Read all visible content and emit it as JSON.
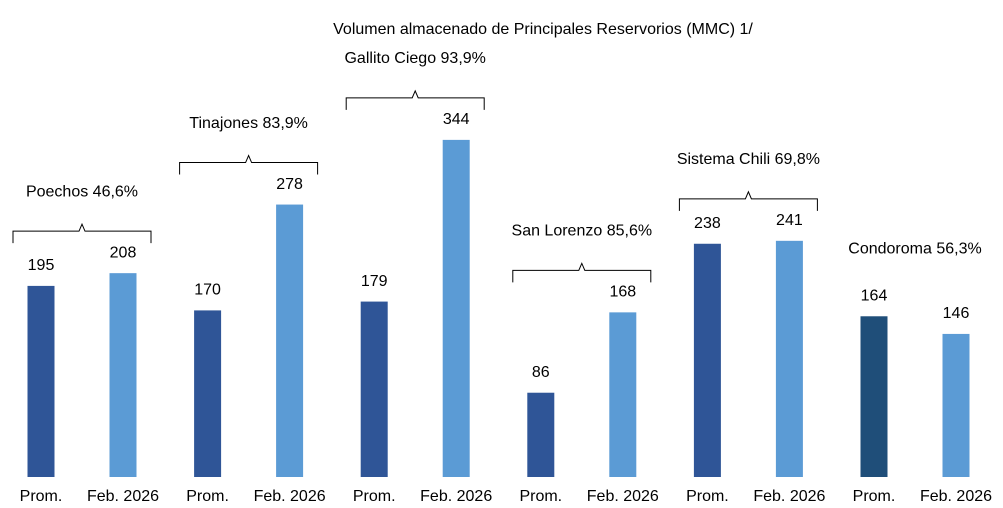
{
  "chart_data": {
    "type": "bar",
    "title": "Volumen almacenado de Principales Reservorios  (MMC) 1/",
    "groups": [
      {
        "name": "Poechos 46,6%",
        "categories": [
          "Prom.",
          "Feb. 2026"
        ],
        "values": [
          195,
          208
        ],
        "colors": [
          "#2f5597",
          "#5b9bd5"
        ],
        "bracket": true
      },
      {
        "name": "Tinajones 83,9%",
        "categories": [
          "Prom.",
          "Feb. 2026"
        ],
        "values": [
          170,
          278
        ],
        "colors": [
          "#2f5597",
          "#5b9bd5"
        ],
        "bracket": true
      },
      {
        "name": "Gallito  Ciego 93,9%",
        "categories": [
          "Prom.",
          "Feb. 2026"
        ],
        "values": [
          179,
          344
        ],
        "colors": [
          "#2f5597",
          "#5b9bd5"
        ],
        "bracket": true
      },
      {
        "name": "San Lorenzo 85,6%",
        "categories": [
          "Prom.",
          "Feb. 2026"
        ],
        "values": [
          86,
          168
        ],
        "colors": [
          "#2f5597",
          "#5b9bd5"
        ],
        "bracket": true
      },
      {
        "name": "Sistema Chili 69,8%",
        "categories": [
          "Prom.",
          "Feb. 2026"
        ],
        "values": [
          238,
          241
        ],
        "colors": [
          "#2f5597",
          "#5b9bd5"
        ],
        "bracket": true
      },
      {
        "name": "Condoroma 56,3%",
        "categories": [
          "Prom.",
          "Feb. 2026"
        ],
        "values": [
          164,
          146
        ],
        "colors": [
          "#1f4e79",
          "#5b9bd5"
        ],
        "bracket": false
      }
    ]
  }
}
